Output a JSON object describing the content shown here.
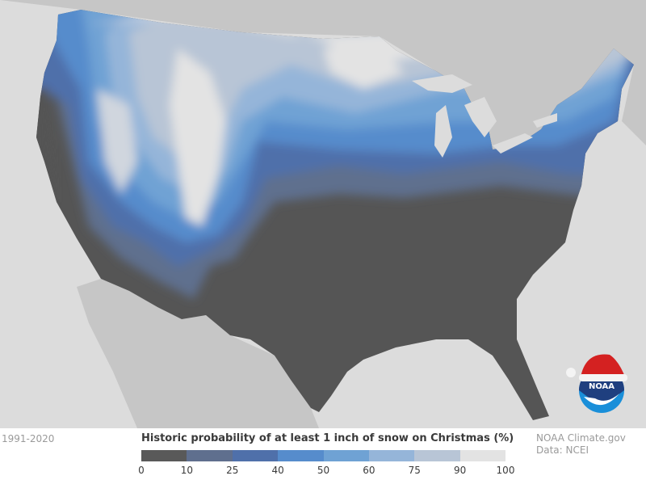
{
  "map": {
    "title": "Historic probability of at least 1 inch of snow on Christmas (%)",
    "period": "1991-2020",
    "credit_line1": "NOAA Climate.gov",
    "credit_line2": "Data: NCEI",
    "logo_text": "NOAA",
    "colors": {
      "background": "#dcdcdc",
      "neighbor_land": "#c6c6c6",
      "no_snow": "#555555"
    }
  },
  "legend": {
    "unit": "%",
    "bins": [
      {
        "from": 0,
        "to": 10,
        "color": "#595959"
      },
      {
        "from": 10,
        "to": 25,
        "color": "#5f6f8e"
      },
      {
        "from": 25,
        "to": 40,
        "color": "#4f70aa"
      },
      {
        "from": 40,
        "to": 50,
        "color": "#568ccc"
      },
      {
        "from": 50,
        "to": 60,
        "color": "#6fa2d4"
      },
      {
        "from": 60,
        "to": 75,
        "color": "#95b5d9"
      },
      {
        "from": 75,
        "to": 90,
        "color": "#b8c5d6"
      },
      {
        "from": 90,
        "to": 100,
        "color": "#e3e3e3"
      }
    ],
    "tick_labels": [
      "0",
      "10",
      "25",
      "40",
      "50",
      "60",
      "75",
      "90",
      "100"
    ]
  }
}
